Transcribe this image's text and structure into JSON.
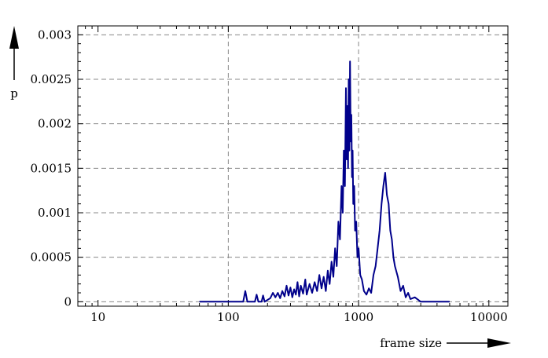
{
  "chart_data": {
    "type": "line",
    "title": "",
    "xlabel": "frame size",
    "ylabel": "p",
    "x_scale": "log",
    "xlim": [
      7,
      14000
    ],
    "ylim": [
      -5e-05,
      0.0031
    ],
    "grid": true,
    "x_ticks": [
      {
        "value": 10,
        "label": "10"
      },
      {
        "value": 100,
        "label": "100"
      },
      {
        "value": 1000,
        "label": "1000"
      },
      {
        "value": 10000,
        "label": "10000"
      }
    ],
    "y_ticks": [
      {
        "value": 0,
        "label": "0"
      },
      {
        "value": 0.0005,
        "label": "0.0005"
      },
      {
        "value": 0.001,
        "label": "0.001"
      },
      {
        "value": 0.0015,
        "label": "0.0015"
      },
      {
        "value": 0.002,
        "label": "0.002"
      },
      {
        "value": 0.0025,
        "label": "0.0025"
      },
      {
        "value": 0.003,
        "label": "0.003"
      }
    ],
    "line_color": "#00008b",
    "series": [
      {
        "values": [
          [
            60,
            0
          ],
          [
            130,
            0
          ],
          [
            135,
            0.00012
          ],
          [
            140,
            0
          ],
          [
            160,
            0
          ],
          [
            165,
            8e-05
          ],
          [
            170,
            0
          ],
          [
            180,
            0
          ],
          [
            185,
            7e-05
          ],
          [
            190,
            0
          ],
          [
            210,
            4e-05
          ],
          [
            220,
            0.0001
          ],
          [
            230,
            5e-05
          ],
          [
            240,
            0.0001
          ],
          [
            250,
            4e-05
          ],
          [
            260,
            0.00012
          ],
          [
            270,
            6e-05
          ],
          [
            280,
            0.00018
          ],
          [
            290,
            7e-05
          ],
          [
            300,
            0.00016
          ],
          [
            310,
            5e-05
          ],
          [
            320,
            0.00014
          ],
          [
            330,
            8e-05
          ],
          [
            340,
            0.00022
          ],
          [
            350,
            6e-05
          ],
          [
            360,
            0.00018
          ],
          [
            375,
            9e-05
          ],
          [
            390,
            0.00025
          ],
          [
            400,
            8e-05
          ],
          [
            420,
            0.0002
          ],
          [
            440,
            0.0001
          ],
          [
            460,
            0.00022
          ],
          [
            480,
            0.00012
          ],
          [
            500,
            0.0003
          ],
          [
            520,
            0.00015
          ],
          [
            540,
            0.00028
          ],
          [
            560,
            0.00012
          ],
          [
            580,
            0.00035
          ],
          [
            600,
            0.0002
          ],
          [
            620,
            0.00045
          ],
          [
            640,
            0.00028
          ],
          [
            660,
            0.0006
          ],
          [
            680,
            0.0004
          ],
          [
            700,
            0.0009
          ],
          [
            720,
            0.0007
          ],
          [
            740,
            0.0013
          ],
          [
            755,
            0.001
          ],
          [
            770,
            0.0017
          ],
          [
            785,
            0.0013
          ],
          [
            800,
            0.0024
          ],
          [
            810,
            0.0016
          ],
          [
            820,
            0.0022
          ],
          [
            830,
            0.0015
          ],
          [
            840,
            0.0025
          ],
          [
            850,
            0.0017
          ],
          [
            860,
            0.0027
          ],
          [
            870,
            0.0018
          ],
          [
            880,
            0.0021
          ],
          [
            890,
            0.0014
          ],
          [
            900,
            0.0017
          ],
          [
            910,
            0.0011
          ],
          [
            925,
            0.0013
          ],
          [
            940,
            0.0008
          ],
          [
            960,
            0.0009
          ],
          [
            980,
            0.0005
          ],
          [
            1000,
            0.0006
          ],
          [
            1030,
            0.0003
          ],
          [
            1060,
            0.00025
          ],
          [
            1100,
            0.00012
          ],
          [
            1150,
            8e-05
          ],
          [
            1200,
            0.00015
          ],
          [
            1250,
            0.0001
          ],
          [
            1300,
            0.0003
          ],
          [
            1350,
            0.0004
          ],
          [
            1400,
            0.0006
          ],
          [
            1450,
            0.0008
          ],
          [
            1500,
            0.0011
          ],
          [
            1550,
            0.0013
          ],
          [
            1600,
            0.00145
          ],
          [
            1650,
            0.0012
          ],
          [
            1700,
            0.0011
          ],
          [
            1750,
            0.0008
          ],
          [
            1800,
            0.0007
          ],
          [
            1850,
            0.0005
          ],
          [
            1900,
            0.0004
          ],
          [
            2000,
            0.00028
          ],
          [
            2100,
            0.00012
          ],
          [
            2200,
            0.00018
          ],
          [
            2300,
            5e-05
          ],
          [
            2400,
            0.0001
          ],
          [
            2500,
            3e-05
          ],
          [
            2700,
            5e-05
          ],
          [
            3000,
            0
          ],
          [
            5000,
            0
          ]
        ]
      }
    ]
  }
}
